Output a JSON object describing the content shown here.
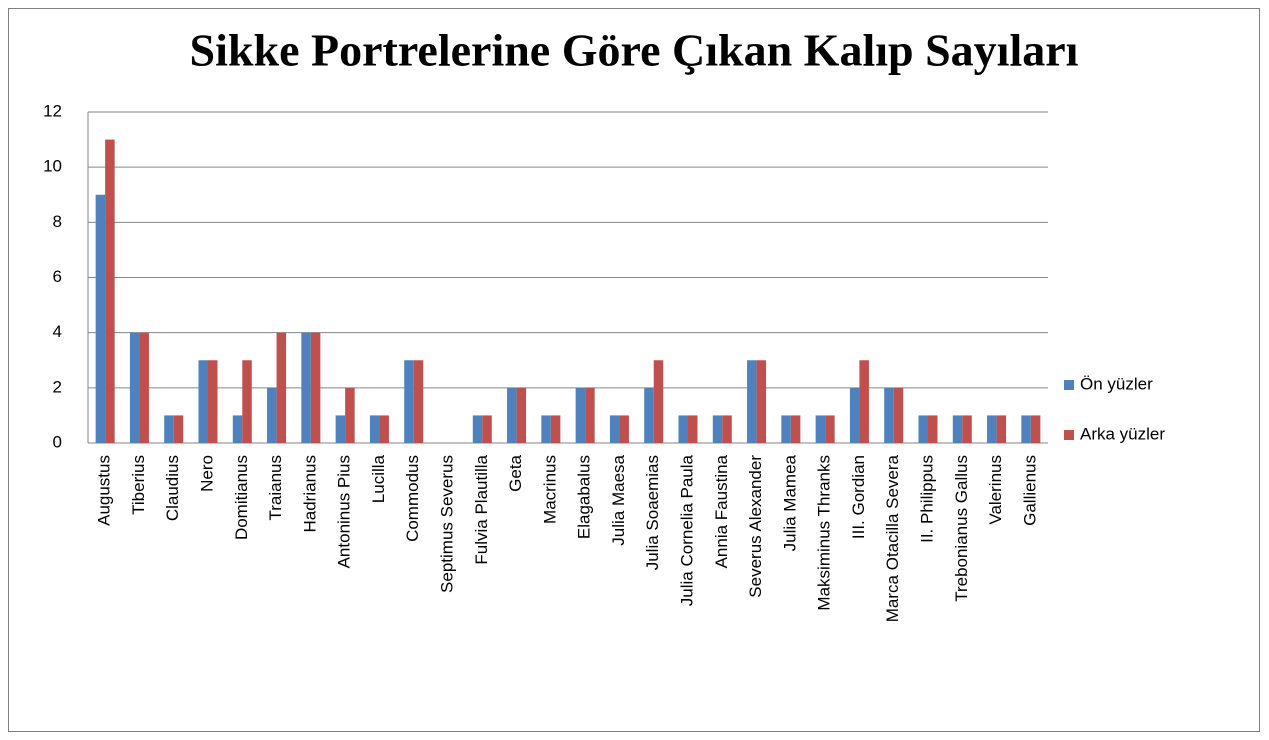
{
  "chart_data": {
    "type": "bar",
    "title": "Sikke Portrelerine Göre Çıkan Kalıp Sayıları",
    "categories": [
      "Augustus",
      "Tiberius",
      "Claudius",
      "Nero",
      "Domitianus",
      "Traianus",
      "Hadrianus",
      "Antoninus Pius",
      "Lucilla",
      "Commodus",
      "Septimus Severus",
      "Fulvia Plautilla",
      "Geta",
      "Macrinus",
      "Elagabalus",
      "Julia Maesa",
      "Julia Soaemias",
      "Julia Cornelia Paula",
      "Annia Faustina",
      "Severus Alexander",
      "Julia Mamea",
      "Maksiminus Thranks",
      "III. Gordian",
      "Marca Otacilla Severa",
      "II. Philippus",
      "Trebonianus Gallus",
      "Valerinus",
      "Gallienus"
    ],
    "series": [
      {
        "name": "Ön yüzler",
        "color": "#4f81bd",
        "values": [
          9,
          4,
          1,
          3,
          1,
          2,
          4,
          1,
          1,
          3,
          0,
          1,
          2,
          1,
          2,
          1,
          2,
          1,
          1,
          3,
          1,
          1,
          2,
          2,
          1,
          1,
          1,
          1
        ]
      },
      {
        "name": "Arka yüzler",
        "color": "#c0504d",
        "values": [
          11,
          4,
          1,
          3,
          3,
          4,
          4,
          2,
          1,
          3,
          0,
          1,
          2,
          1,
          2,
          1,
          3,
          1,
          1,
          3,
          1,
          1,
          3,
          2,
          1,
          1,
          1,
          1
        ]
      }
    ],
    "ylim": [
      0,
      12
    ],
    "yticks": [
      0,
      2,
      4,
      6,
      8,
      10,
      12
    ],
    "grid": true,
    "legend": "right"
  }
}
